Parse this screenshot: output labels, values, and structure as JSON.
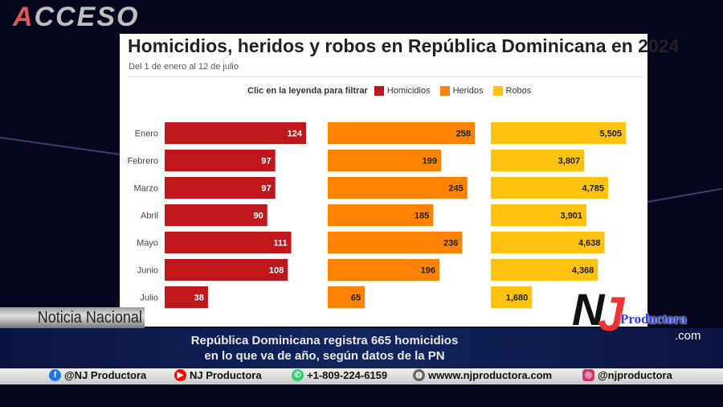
{
  "broadcast": {
    "logo_text": "ACCESO",
    "section_tag": "Noticia Nacional",
    "headline_line1": "República Dominicana registra 665 homicidios",
    "headline_line2": "en lo que va de año, según datos de la PN",
    "brand_logo_text": "NJ",
    "brand_name": "Productora",
    "brand_suffix": ".com"
  },
  "footer": {
    "items": [
      {
        "icon": "facebook-icon",
        "label": "@NJ Productora",
        "color": "#1877f2"
      },
      {
        "icon": "youtube-icon",
        "label": "NJ Productora",
        "color": "#ff0000"
      },
      {
        "icon": "whatsapp-icon",
        "label": "+1-809-224-6159",
        "color": "#25d366"
      },
      {
        "icon": "globe-icon",
        "label": "wwww.njproductora.com",
        "color": "#666666"
      },
      {
        "icon": "instagram-icon",
        "label": "@njproductora",
        "color": "#e1306c"
      }
    ]
  },
  "chart_data": {
    "type": "bar",
    "orientation": "horizontal",
    "title": "Homicidios, heridos y robos en República Dominicana en 2024",
    "subtitle": "Del 1 de enero al 12 de julio",
    "legend_title": "Clic en la leyenda para filtrar",
    "legend_placement": "top",
    "grid": false,
    "categories": [
      "Enero",
      "Febrero",
      "Marzo",
      "Abril",
      "Mayo",
      "Junio",
      "Julio"
    ],
    "series": [
      {
        "name": "Homicidios",
        "color": "#c0171c",
        "values": [
          124,
          97,
          97,
          90,
          111,
          108,
          38
        ],
        "labels": [
          "124",
          "97",
          "97",
          "90",
          "111",
          "108",
          "38"
        ]
      },
      {
        "name": "Heridos",
        "color": "#ff8200",
        "values": [
          258,
          199,
          245,
          185,
          236,
          196,
          65
        ],
        "labels": [
          "258",
          "199",
          "245",
          "185",
          "236",
          "196",
          "65"
        ]
      },
      {
        "name": "Robos",
        "color": "#ffc20e",
        "values": [
          5505,
          3807,
          4785,
          3901,
          4638,
          4368,
          1680
        ],
        "labels": [
          "5,505",
          "3,807",
          "4,785",
          "3,901",
          "4,638",
          "4,368",
          "1,680"
        ]
      }
    ]
  }
}
